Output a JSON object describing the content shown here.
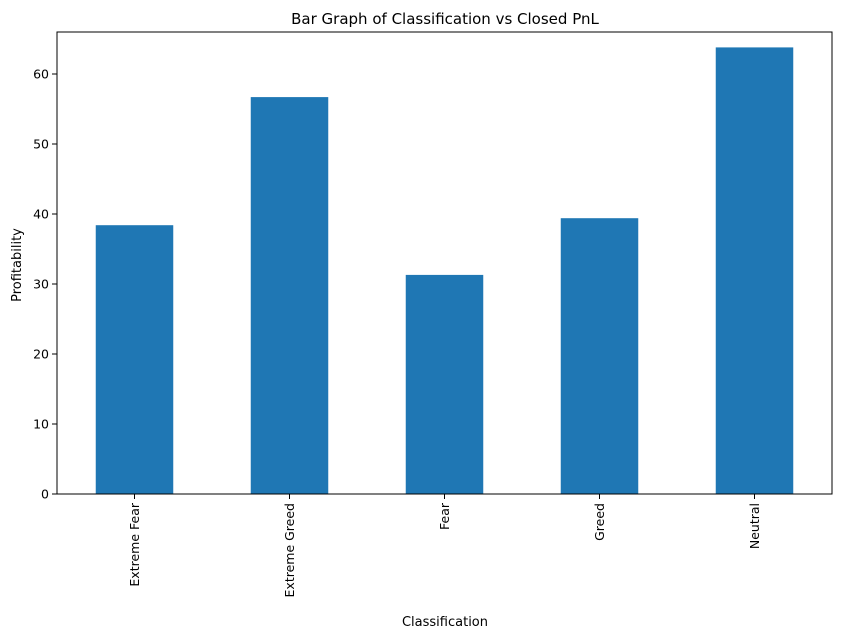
{
  "chart_data": {
    "type": "bar",
    "title": "Bar Graph of Classification vs Closed PnL",
    "xlabel": "Classification",
    "ylabel": "Profitability",
    "categories": [
      "Extreme Fear",
      "Extreme Greed",
      "Fear",
      "Greed",
      "Neutral"
    ],
    "values": [
      38.4,
      56.7,
      31.3,
      39.4,
      63.8
    ],
    "ylim": [
      0,
      66
    ],
    "yticks": [
      0,
      10,
      20,
      30,
      40,
      50,
      60
    ],
    "bar_color": "#1f77b4",
    "grid": false,
    "legend": "none"
  }
}
